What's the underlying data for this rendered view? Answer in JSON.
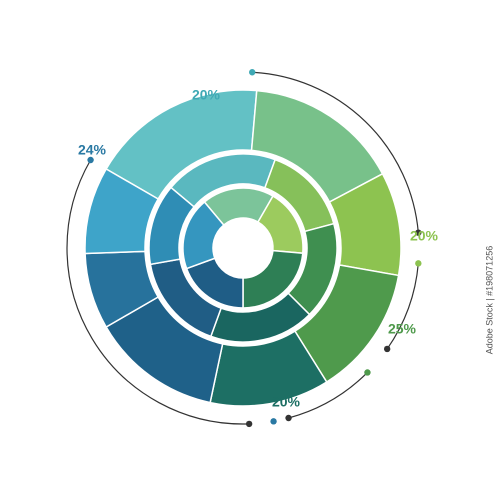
{
  "labels": [
    "20%",
    "24%",
    "20%",
    "25%",
    "20%"
  ],
  "watermark": "Adobe Stock | #198071256"
}
